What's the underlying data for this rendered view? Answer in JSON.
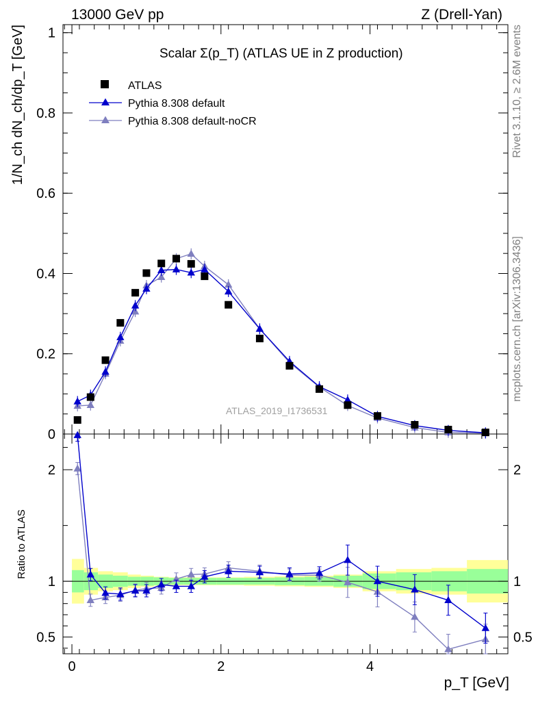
{
  "header": {
    "left": "13000 GeV pp",
    "right": "Z (Drell-Yan)"
  },
  "side": {
    "rivet": "Rivet 3.1.10, ≥ 2.6M events",
    "mcplots": "mcplots.cern.ch [arXiv:1306.3436]"
  },
  "chart_data": {
    "type": "scatter",
    "title": "Scalar Σ(p_T) (ATLAS UE in Z production)",
    "analysis_label": "ATLAS_2019_I1736531",
    "xlabel": "p_T [GeV]",
    "ylabel": "1/N_ch dN_ch/dp_T [GeV]",
    "ratio_ylabel": "Ratio to ATLAS",
    "xlim": [
      -0.12,
      5.85
    ],
    "ylim": [
      0,
      1.02
    ],
    "ratio_ylim": [
      0.35,
      2.32
    ],
    "xticks": [
      0,
      2,
      4
    ],
    "yticks": [
      0,
      0.2,
      0.4,
      0.6,
      0.8,
      1
    ],
    "ratio_yticks": [
      0.5,
      1,
      2
    ],
    "x": [
      0.075,
      0.25,
      0.45,
      0.65,
      0.85,
      1.0,
      1.2,
      1.4,
      1.6,
      1.78,
      2.1,
      2.52,
      2.92,
      3.32,
      3.7,
      4.1,
      4.6,
      5.05,
      5.55
    ],
    "data": {
      "name": "ATLAS",
      "values": [
        0.035,
        0.092,
        0.184,
        0.277,
        0.352,
        0.401,
        0.425,
        0.437,
        0.424,
        0.393,
        0.322,
        0.238,
        0.17,
        0.112,
        0.072,
        0.045,
        0.023,
        0.011,
        0.004
      ]
    },
    "series": [
      {
        "name": "Pythia 8.308 default",
        "color": "#0000cc",
        "values": [
          0.081,
          0.097,
          0.155,
          0.241,
          0.32,
          0.362,
          0.408,
          0.41,
          0.402,
          0.41,
          0.355,
          0.262,
          0.181,
          0.118,
          0.085,
          0.044,
          0.021,
          0.009,
          0.003
        ],
        "ratio": [
          2.31,
          1.06,
          0.895,
          0.885,
          0.915,
          0.915,
          0.97,
          0.955,
          0.955,
          1.04,
          1.09,
          1.08,
          1.065,
          1.075,
          1.19,
          1.0,
          0.925,
          0.83,
          0.58
        ]
      },
      {
        "name": "Pythia 8.308 default-noCR",
        "color": "#7f7fbf",
        "values": [
          0.07,
          0.072,
          0.15,
          0.232,
          0.305,
          0.37,
          0.391,
          0.437,
          0.449,
          0.418,
          0.372,
          0.262,
          0.178,
          0.117,
          0.071,
          0.04,
          0.016,
          0.004,
          0.002
        ],
        "ratio": [
          2.01,
          0.83,
          0.855,
          0.875,
          0.92,
          0.935,
          0.94,
          1.02,
          1.06,
          1.065,
          1.12,
          1.09,
          1.055,
          1.055,
          0.99,
          0.905,
          0.68,
          0.39,
          0.48
        ]
      }
    ],
    "ratio_band_inner": [
      0.1,
      0.08,
      0.06,
      0.05,
      0.04,
      0.04,
      0.035,
      0.03,
      0.03,
      0.03,
      0.03,
      0.03,
      0.035,
      0.04,
      0.05,
      0.07,
      0.08,
      0.09,
      0.11
    ],
    "ratio_band_outer": [
      0.2,
      0.12,
      0.09,
      0.08,
      0.06,
      0.05,
      0.04,
      0.035,
      0.035,
      0.035,
      0.035,
      0.04,
      0.045,
      0.05,
      0.06,
      0.09,
      0.11,
      0.12,
      0.19
    ]
  }
}
